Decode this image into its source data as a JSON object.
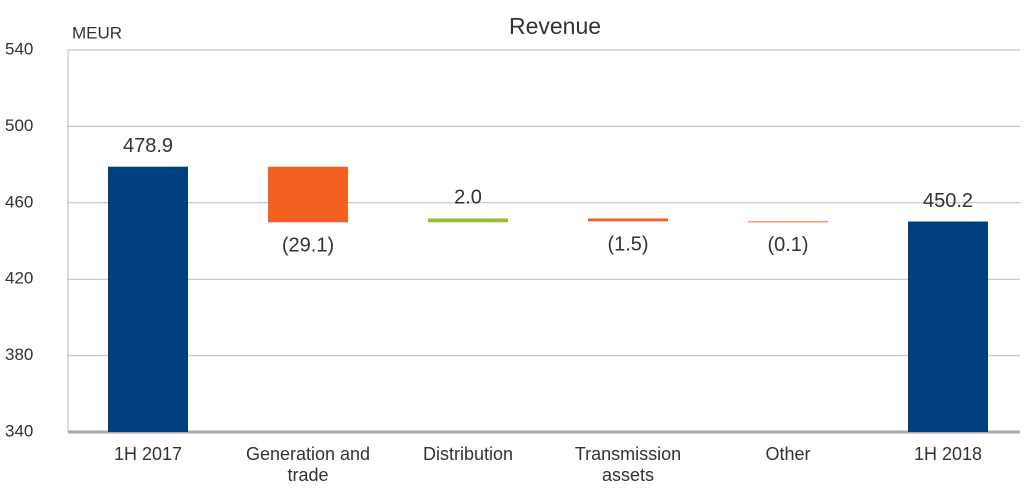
{
  "chart_data": {
    "type": "waterfall",
    "title": "Revenue",
    "y_label": "MEUR",
    "categories": [
      "1H 2017",
      "Generation and trade",
      "Distribution",
      "Transmission assets",
      "Other",
      "1H 2018"
    ],
    "values": [
      478.9,
      -29.1,
      2.0,
      -1.5,
      -0.1,
      450.2
    ],
    "value_labels": [
      "478.9",
      "(29.1)",
      "2.0",
      "(1.5)",
      "(0.1)",
      "450.2"
    ],
    "colors": [
      "#003f7f",
      "#f26122",
      "#9bbb34",
      "#f26122",
      "#f26122",
      "#003f7f"
    ],
    "ylim": [
      340,
      540
    ],
    "yticks": [
      340,
      380,
      420,
      460,
      500,
      540
    ],
    "grid": true
  }
}
